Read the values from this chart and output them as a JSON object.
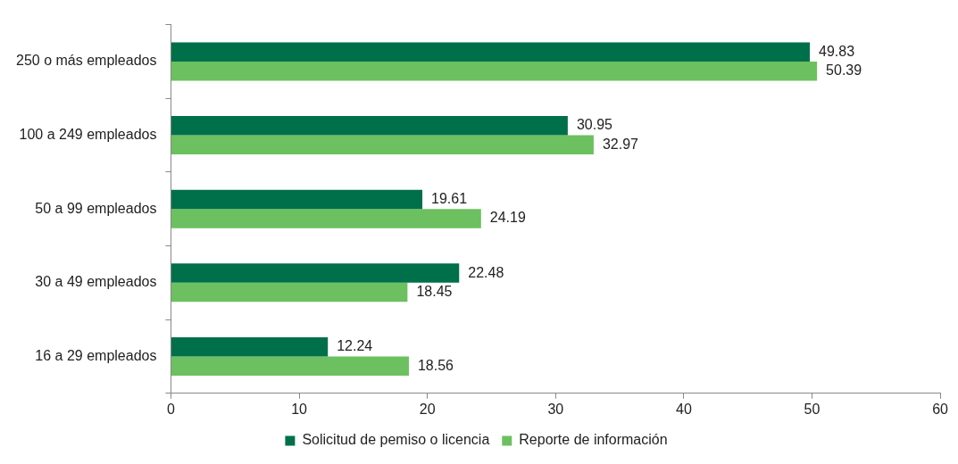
{
  "chart_data": {
    "type": "bar",
    "orientation": "horizontal",
    "categories": [
      "250 o más empleados",
      "100 a 249 empleados",
      "50 a 99 empleados",
      "30 a 49 empleados",
      "16 a 29 empleados"
    ],
    "series": [
      {
        "name": "Solicitud de pemiso o licencia",
        "color": "#00704a",
        "values": [
          49.83,
          30.95,
          19.61,
          22.48,
          12.24
        ]
      },
      {
        "name": "Reporte de información",
        "color": "#6cc05f",
        "values": [
          50.39,
          32.97,
          24.19,
          18.45,
          18.56
        ]
      }
    ],
    "xlim": [
      0,
      60
    ],
    "xticks": [
      0,
      10,
      20,
      30,
      40,
      50,
      60
    ],
    "data_labels": true,
    "grid": false,
    "legend": "bottom"
  }
}
